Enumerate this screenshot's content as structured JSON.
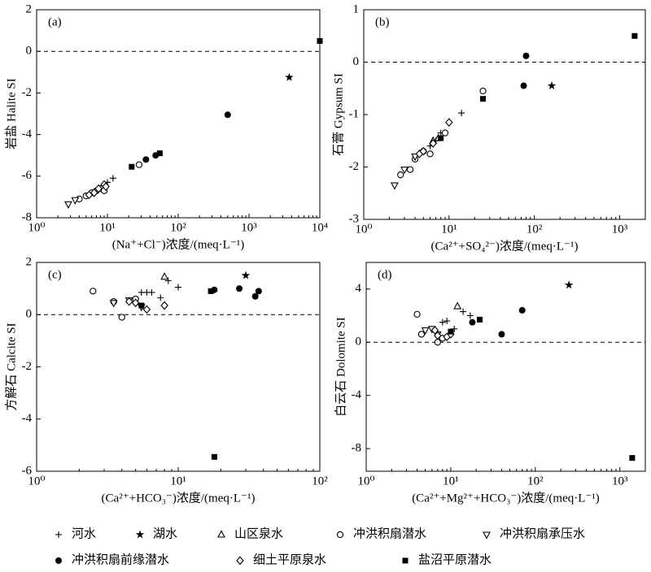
{
  "legend": {
    "items": [
      {
        "name": "河水",
        "marker": "plus"
      },
      {
        "name": "湖水",
        "marker": "star"
      },
      {
        "name": "山区泉水",
        "marker": "triangle"
      },
      {
        "name": "冲洪积扇潜水",
        "marker": "circle"
      },
      {
        "name": "冲洪积扇承压水",
        "marker": "triangle-down"
      },
      {
        "name": "冲洪积扇前缘潜水",
        "marker": "dot"
      },
      {
        "name": "细土平原泉水",
        "marker": "diamond"
      },
      {
        "name": "盐沼平原潜水",
        "marker": "square"
      }
    ]
  },
  "chart_data": [
    {
      "type": "scatter",
      "label": "(a)",
      "ylabel": "岩盐 Halite SI",
      "xlabel": "(Na⁺+Cl⁻)浓度/(meq·L⁻¹)",
      "log_x": true,
      "color": "#000000",
      "hline": 0,
      "xlim": [
        1,
        10000
      ],
      "ylim": [
        -8,
        2
      ],
      "xticks": [
        {
          "value": 1,
          "label": "10⁰"
        },
        {
          "value": 10,
          "label": "10¹"
        },
        {
          "value": 100,
          "label": "10²"
        },
        {
          "value": 1000,
          "label": "10³"
        },
        {
          "value": 10000,
          "label": "10⁴"
        }
      ],
      "yticks": [
        2,
        0,
        -2,
        -4,
        -6,
        -8
      ],
      "series": [
        {
          "x": [
            10,
            12
          ],
          "values": [
            -6.3,
            -6.1
          ]
        },
        {
          "x": [
            3700
          ],
          "values": [
            -1.25
          ]
        },
        {
          "x": [],
          "values": []
        },
        {
          "x": [
            4,
            5,
            6,
            7,
            8,
            9,
            28
          ],
          "values": [
            -7.1,
            -6.95,
            -6.8,
            -6.7,
            -6.6,
            -6.7,
            -5.45
          ]
        },
        {
          "x": [
            2.8,
            3.5
          ],
          "values": [
            -7.35,
            -7.15
          ]
        },
        {
          "x": [
            35,
            48,
            500
          ],
          "values": [
            -5.2,
            -5.0,
            -3.05
          ]
        },
        {
          "x": [
            5.5,
            6.5,
            7.5,
            9,
            9.5
          ],
          "values": [
            -6.9,
            -6.8,
            -6.6,
            -6.4,
            -6.5
          ]
        },
        {
          "x": [
            22,
            55,
            10000
          ],
          "values": [
            -5.55,
            -4.9,
            0.5
          ]
        }
      ]
    },
    {
      "type": "scatter",
      "label": "(b)",
      "ylabel": "石膏 Gypsum SI",
      "xlabel": "(Ca²⁺+SO₄²⁻)浓度/(meq·L⁻¹)",
      "log_x": true,
      "color": "#000000",
      "hline": 0,
      "xlim": [
        1,
        2000
      ],
      "ylim": [
        -3,
        1
      ],
      "xticks": [
        {
          "value": 1,
          "label": "10⁰"
        },
        {
          "value": 10,
          "label": "10¹"
        },
        {
          "value": 100,
          "label": "10²"
        },
        {
          "value": 1000,
          "label": "10³"
        }
      ],
      "yticks": [
        1,
        0,
        -1,
        -2,
        -3
      ],
      "series": [
        {
          "x": [
            6,
            7,
            8,
            14
          ],
          "values": [
            -1.6,
            -1.5,
            -1.35,
            -0.97
          ]
        },
        {
          "x": [
            160
          ],
          "values": [
            -0.45
          ]
        },
        {
          "x": [
            6.5,
            7.5
          ],
          "values": [
            -1.5,
            -1.45
          ]
        },
        {
          "x": [
            2.7,
            3.5,
            4,
            5,
            6,
            9,
            25
          ],
          "values": [
            -2.15,
            -2.05,
            -1.85,
            -1.7,
            -1.75,
            -1.35,
            -0.55
          ]
        },
        {
          "x": [
            2.3,
            3,
            4
          ],
          "values": [
            -2.35,
            -2.05,
            -1.8
          ]
        },
        {
          "x": [
            75,
            80
          ],
          "values": [
            -0.45,
            0.12
          ]
        },
        {
          "x": [
            4.5,
            5,
            6.5,
            10
          ],
          "values": [
            -1.75,
            -1.7,
            -1.55,
            -1.15
          ]
        },
        {
          "x": [
            8,
            25,
            1500
          ],
          "values": [
            -1.45,
            -0.7,
            0.5
          ]
        }
      ]
    },
    {
      "type": "scatter",
      "label": "(c)",
      "ylabel": "方解石 Calcite SI",
      "xlabel": "(Ca²⁺+HCO₃⁻)浓度/(meq·L⁻¹)",
      "log_x": true,
      "color": "#000000",
      "hline": 0,
      "xlim": [
        1,
        100
      ],
      "ylim": [
        -6,
        2
      ],
      "xticks": [
        {
          "value": 1,
          "label": "10⁰"
        },
        {
          "value": 10,
          "label": "10¹"
        },
        {
          "value": 100,
          "label": "10²"
        }
      ],
      "yticks": [
        2,
        0,
        -2,
        -4,
        -6
      ],
      "series": [
        {
          "x": [
            5.5,
            6,
            6.5,
            7.5,
            8.5,
            10
          ],
          "values": [
            0.85,
            0.85,
            0.85,
            0.65,
            1.3,
            1.05
          ]
        },
        {
          "x": [
            30
          ],
          "values": [
            1.5
          ]
        },
        {
          "x": [
            8
          ],
          "values": [
            1.45
          ]
        },
        {
          "x": [
            2.5,
            3.5,
            4,
            5
          ],
          "values": [
            0.9,
            0.5,
            -0.1,
            0.6
          ]
        },
        {
          "x": [
            3.5,
            4.5,
            5.5
          ],
          "values": [
            0.45,
            0.55,
            0.3
          ]
        },
        {
          "x": [
            18,
            27,
            35,
            37
          ],
          "values": [
            0.95,
            1.0,
            0.7,
            0.9
          ]
        },
        {
          "x": [
            4.5,
            5,
            6,
            8
          ],
          "values": [
            0.5,
            0.45,
            0.2,
            0.35
          ]
        },
        {
          "x": [
            5.5,
            17,
            18
          ],
          "values": [
            0.35,
            0.9,
            -5.45
          ]
        }
      ]
    },
    {
      "type": "scatter",
      "label": "(d)",
      "ylabel": "白云石 Dolomite SI",
      "xlabel": "(Ca²⁺+Mg²⁺+HCO₃⁻)浓度/(meq·L⁻¹)",
      "log_x": true,
      "color": "#000000",
      "hline": 0,
      "xlim": [
        1,
        2000
      ],
      "ylim": [
        -9.7,
        6
      ],
      "xticks": [
        {
          "value": 1,
          "label": "10⁰"
        },
        {
          "value": 10,
          "label": "10¹"
        },
        {
          "value": 100,
          "label": "10²"
        },
        {
          "value": 1000,
          "label": "10³"
        }
      ],
      "yticks": [
        4,
        0,
        -4,
        -8
      ],
      "series": [
        {
          "x": [
            8,
            9,
            11,
            14,
            17
          ],
          "values": [
            1.5,
            1.6,
            1.0,
            2.3,
            2.0
          ]
        },
        {
          "x": [
            250
          ],
          "values": [
            4.3
          ]
        },
        {
          "x": [
            12
          ],
          "values": [
            2.7
          ]
        },
        {
          "x": [
            4,
            4.5,
            7,
            8
          ],
          "values": [
            2.1,
            0.6,
            0.0,
            0.3
          ]
        },
        {
          "x": [
            5,
            6,
            7
          ],
          "values": [
            0.9,
            1.0,
            0.6
          ]
        },
        {
          "x": [
            18,
            40,
            70
          ],
          "values": [
            1.5,
            0.6,
            2.4
          ]
        },
        {
          "x": [
            6.5,
            7,
            9,
            10
          ],
          "values": [
            0.9,
            0.5,
            0.4,
            0.6
          ]
        },
        {
          "x": [
            10,
            22,
            1400
          ],
          "values": [
            0.8,
            1.7,
            -8.7
          ]
        }
      ]
    }
  ]
}
